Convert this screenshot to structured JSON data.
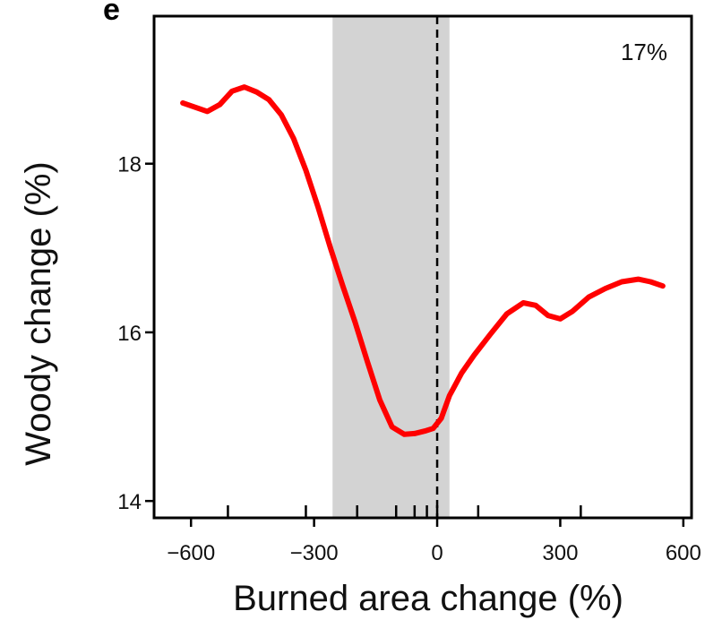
{
  "panel_label": "e",
  "chart_data": {
    "type": "line",
    "title": "",
    "xlabel": "Burned area change (%)",
    "ylabel": "Woody change (%)",
    "annotation": "17%",
    "xlim": [
      -690,
      620
    ],
    "ylim": [
      13.8,
      19.75
    ],
    "xticks": [
      -600,
      -300,
      0,
      300,
      600
    ],
    "xtick_labels": [
      "−600",
      "−300",
      "0",
      "300",
      "600"
    ],
    "yticks": [
      14,
      16,
      18
    ],
    "ytick_labels": [
      "14",
      "16",
      "18"
    ],
    "grid": false,
    "shaded_region": [
      -255,
      30
    ],
    "reference_line_x": 0,
    "rug_x": [
      -510,
      -320,
      -195,
      -100,
      -55,
      -25,
      0,
      100,
      350
    ],
    "series": [
      {
        "color": "#ff0000",
        "x": [
          -620,
          -560,
          -530,
          -500,
          -470,
          -440,
          -410,
          -380,
          -350,
          -320,
          -290,
          -260,
          -230,
          -200,
          -170,
          -140,
          -110,
          -80,
          -55,
          -30,
          -10,
          10,
          30,
          60,
          90,
          130,
          170,
          210,
          240,
          270,
          300,
          330,
          370,
          410,
          450,
          490,
          520,
          550
        ],
        "y": [
          18.72,
          18.62,
          18.7,
          18.86,
          18.91,
          18.85,
          18.76,
          18.58,
          18.3,
          17.92,
          17.48,
          17.0,
          16.55,
          16.12,
          15.65,
          15.2,
          14.88,
          14.79,
          14.8,
          14.83,
          14.86,
          14.98,
          15.25,
          15.52,
          15.73,
          15.98,
          16.22,
          16.35,
          16.32,
          16.2,
          16.16,
          16.25,
          16.42,
          16.52,
          16.6,
          16.63,
          16.6,
          16.55
        ]
      }
    ]
  }
}
